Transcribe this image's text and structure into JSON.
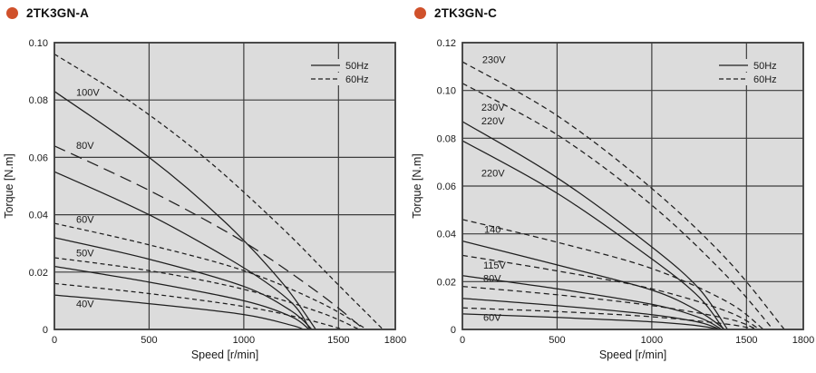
{
  "styles": {
    "accent": "#d0512b",
    "plot_bg": "#dcdcdc",
    "grid_color": "#3d3d3d",
    "curve_color": "#1f1f1f",
    "text_color": "#1a1a1a"
  },
  "chart_data": [
    {
      "type": "line",
      "title": "2TK3GN-A",
      "xlabel": "Speed [r/min]",
      "ylabel": "Torque [N.m]",
      "xlim": [
        0,
        1800
      ],
      "ylim": [
        0,
        0.1
      ],
      "grid": true,
      "xticks": {
        "values": [
          0,
          500,
          1000,
          1500,
          1800
        ],
        "labels": [
          "0",
          "500",
          "1000",
          "1500",
          "1800"
        ]
      },
      "yticks": {
        "values": [
          0,
          0.02,
          0.04,
          0.06,
          0.08,
          0.1
        ],
        "labels": [
          "0",
          "0.02",
          "0.04",
          "0.06",
          "0.08",
          "0.10"
        ]
      },
      "legend": {
        "position": "top-right",
        "items": [
          {
            "label": "50Hz",
            "style": "solid"
          },
          {
            "label": "60Hz",
            "style": "dashed"
          }
        ]
      },
      "series": [
        {
          "name": "100V 60Hz",
          "voltage": "100V",
          "frequency": "60Hz",
          "style": "dashed",
          "dash": "5,3.5",
          "points": [
            [
              0,
              0.096
            ],
            [
              400,
              0.0795
            ],
            [
              800,
              0.0595
            ],
            [
              1200,
              0.0355
            ],
            [
              1500,
              0.0155
            ],
            [
              1735,
              0
            ]
          ]
        },
        {
          "name": "100V 50Hz",
          "voltage": "100V",
          "frequency": "50Hz",
          "style": "solid",
          "dash": "",
          "points": [
            [
              0,
              0.083
            ],
            [
              500,
              0.06
            ],
            [
              900,
              0.0375
            ],
            [
              1200,
              0.0165
            ],
            [
              1380,
              0
            ]
          ]
        },
        {
          "name": "80V 60Hz",
          "voltage": "80V",
          "frequency": "60Hz",
          "style": "dashed",
          "dash": "13,7",
          "points": [
            [
              0,
              0.064
            ],
            [
              500,
              0.0485
            ],
            [
              1000,
              0.0305
            ],
            [
              1400,
              0.0125
            ],
            [
              1635,
              0
            ]
          ]
        },
        {
          "name": "80V 50Hz",
          "voltage": "80V",
          "frequency": "50Hz",
          "style": "solid",
          "dash": "",
          "points": [
            [
              0,
              0.055
            ],
            [
              500,
              0.04
            ],
            [
              1000,
              0.0215
            ],
            [
              1250,
              0.0095
            ],
            [
              1350,
              0
            ]
          ]
        },
        {
          "name": "60V 60Hz",
          "voltage": "60V",
          "frequency": "60Hz",
          "style": "dashed",
          "dash": "5,3.5",
          "points": [
            [
              0,
              0.037
            ],
            [
              500,
              0.0295
            ],
            [
              1000,
              0.0205
            ],
            [
              1400,
              0.0095
            ],
            [
              1650,
              0
            ]
          ]
        },
        {
          "name": "60V 50Hz",
          "voltage": "60V",
          "frequency": "50Hz",
          "style": "solid",
          "dash": "",
          "points": [
            [
              0,
              0.032
            ],
            [
              500,
              0.0245
            ],
            [
              1000,
              0.015
            ],
            [
              1250,
              0.0065
            ],
            [
              1360,
              0
            ]
          ]
        },
        {
          "name": "50V 60Hz",
          "voltage": "50V",
          "frequency": "60Hz",
          "style": "dashed",
          "dash": "5,3.5",
          "points": [
            [
              0,
              0.025
            ],
            [
              500,
              0.0205
            ],
            [
              1000,
              0.014
            ],
            [
              1400,
              0.006
            ],
            [
              1610,
              0
            ]
          ]
        },
        {
          "name": "50V 50Hz",
          "voltage": "50V",
          "frequency": "50Hz",
          "style": "solid",
          "dash": "",
          "points": [
            [
              0,
              0.022
            ],
            [
              500,
              0.0165
            ],
            [
              1000,
              0.01
            ],
            [
              1250,
              0.0045
            ],
            [
              1345,
              0
            ]
          ]
        },
        {
          "name": "40V 60Hz",
          "voltage": "40V",
          "frequency": "60Hz",
          "style": "dashed",
          "dash": "5,3.5",
          "points": [
            [
              0,
              0.016
            ],
            [
              500,
              0.0125
            ],
            [
              1000,
              0.008
            ],
            [
              1300,
              0.004
            ],
            [
              1525,
              0
            ]
          ]
        },
        {
          "name": "40V 50Hz",
          "voltage": "40V",
          "frequency": "50Hz",
          "style": "solid",
          "dash": "",
          "points": [
            [
              0,
              0.012
            ],
            [
              500,
              0.009
            ],
            [
              1000,
              0.0052
            ],
            [
              1250,
              0.0015
            ],
            [
              1315,
              0
            ]
          ]
        }
      ],
      "annotations": [
        {
          "text": "100V",
          "x": 115,
          "y": 0.0828
        },
        {
          "text": "80V",
          "x": 115,
          "y": 0.0643
        },
        {
          "text": "60V",
          "x": 115,
          "y": 0.0384
        },
        {
          "text": "50V",
          "x": 115,
          "y": 0.0267
        },
        {
          "text": "40V",
          "x": 115,
          "y": 0.009
        }
      ]
    },
    {
      "type": "line",
      "title": "2TK3GN-C",
      "xlabel": "Speed [r/min]",
      "ylabel": "Torque [N.m]",
      "xlim": [
        0,
        1800
      ],
      "ylim": [
        0,
        0.12
      ],
      "grid": true,
      "xticks": {
        "values": [
          0,
          500,
          1000,
          1500,
          1800
        ],
        "labels": [
          "0",
          "500",
          "1000",
          "1500",
          "1800"
        ]
      },
      "yticks": {
        "values": [
          0,
          0.02,
          0.04,
          0.06,
          0.08,
          0.1,
          0.12
        ],
        "labels": [
          "0",
          "0.02",
          "0.04",
          "0.06",
          "0.08",
          "0.10",
          "0.12"
        ]
      },
      "legend": {
        "position": "top-right",
        "items": [
          {
            "label": "50Hz",
            "style": "solid"
          },
          {
            "label": "60Hz",
            "style": "dashed"
          }
        ]
      },
      "series": [
        {
          "name": "230V 60Hz",
          "voltage": "230V",
          "frequency": "60Hz",
          "style": "dashed",
          "dash": "6,4",
          "points": [
            [
              0,
              0.112
            ],
            [
              500,
              0.0895
            ],
            [
              1000,
              0.059
            ],
            [
              1400,
              0.029
            ],
            [
              1700,
              0
            ]
          ]
        },
        {
          "name": "220V 60Hz",
          "voltage": "220V",
          "frequency": "60Hz",
          "style": "dashed",
          "dash": "6,4",
          "points": [
            [
              0,
              0.103
            ],
            [
              500,
              0.0815
            ],
            [
              1000,
              0.052
            ],
            [
              1400,
              0.022
            ],
            [
              1640,
              0
            ]
          ]
        },
        {
          "name": "230V 50Hz",
          "voltage": "230V",
          "frequency": "50Hz",
          "style": "solid",
          "dash": "",
          "points": [
            [
              0,
              0.087
            ],
            [
              500,
              0.0635
            ],
            [
              1000,
              0.0345
            ],
            [
              1250,
              0.017
            ],
            [
              1400,
              0
            ]
          ]
        },
        {
          "name": "220V 50Hz",
          "voltage": "220V",
          "frequency": "50Hz",
          "style": "solid",
          "dash": "",
          "points": [
            [
              0,
              0.079
            ],
            [
              500,
              0.057
            ],
            [
              1000,
              0.0295
            ],
            [
              1250,
              0.0135
            ],
            [
              1380,
              0
            ]
          ]
        },
        {
          "name": "140 60Hz",
          "voltage": "140",
          "frequency": "60Hz",
          "style": "dashed",
          "dash": "6,4",
          "points": [
            [
              0,
              0.046
            ],
            [
              500,
              0.0365
            ],
            [
              1000,
              0.0255
            ],
            [
              1400,
              0.0115
            ],
            [
              1590,
              0
            ]
          ]
        },
        {
          "name": "140 50Hz",
          "voltage": "140",
          "frequency": "50Hz",
          "style": "solid",
          "dash": "",
          "points": [
            [
              0,
              0.037
            ],
            [
              500,
              0.027
            ],
            [
              1000,
              0.0165
            ],
            [
              1250,
              0.0075
            ],
            [
              1385,
              0
            ]
          ]
        },
        {
          "name": "115V 60Hz",
          "voltage": "115V",
          "frequency": "60Hz",
          "style": "dashed",
          "dash": "6,4",
          "points": [
            [
              0,
              0.031
            ],
            [
              500,
              0.0245
            ],
            [
              1000,
              0.017
            ],
            [
              1400,
              0.0075
            ],
            [
              1570,
              0
            ]
          ]
        },
        {
          "name": "115V 50Hz",
          "voltage": "115V",
          "frequency": "50Hz",
          "style": "solid",
          "dash": "",
          "points": [
            [
              0,
              0.0225
            ],
            [
              500,
              0.017
            ],
            [
              1000,
              0.0105
            ],
            [
              1250,
              0.005
            ],
            [
              1370,
              0
            ]
          ]
        },
        {
          "name": "80V 60Hz",
          "voltage": "80V",
          "frequency": "60Hz",
          "style": "dashed",
          "dash": "6,4",
          "points": [
            [
              0,
              0.018
            ],
            [
              500,
              0.0145
            ],
            [
              1000,
              0.01
            ],
            [
              1400,
              0.0045
            ],
            [
              1555,
              0
            ]
          ]
        },
        {
          "name": "80V 50Hz",
          "voltage": "80V",
          "frequency": "50Hz",
          "style": "solid",
          "dash": "",
          "points": [
            [
              0,
              0.013
            ],
            [
              500,
              0.01
            ],
            [
              1000,
              0.0062
            ],
            [
              1250,
              0.003
            ],
            [
              1360,
              0
            ]
          ]
        },
        {
          "name": "60V 60Hz",
          "voltage": "60V",
          "frequency": "60Hz",
          "style": "dashed",
          "dash": "6,4",
          "points": [
            [
              0,
              0.009
            ],
            [
              500,
              0.0075
            ],
            [
              1000,
              0.0053
            ],
            [
              1400,
              0.0022
            ],
            [
              1545,
              0
            ]
          ]
        },
        {
          "name": "60V 50Hz",
          "voltage": "60V",
          "frequency": "50Hz",
          "style": "solid",
          "dash": "",
          "points": [
            [
              0,
              0.0065
            ],
            [
              500,
              0.005
            ],
            [
              1000,
              0.0032
            ],
            [
              1250,
              0.0015
            ],
            [
              1355,
              0
            ]
          ]
        }
      ],
      "annotations": [
        {
          "text": "230V",
          "x": 105,
          "y": 0.113
        },
        {
          "text": "230V",
          "x": 100,
          "y": 0.093
        },
        {
          "text": "220V",
          "x": 100,
          "y": 0.0873
        },
        {
          "text": "220V",
          "x": 100,
          "y": 0.0655
        },
        {
          "text": "140",
          "x": 115,
          "y": 0.042
        },
        {
          "text": "115V",
          "x": 110,
          "y": 0.027
        },
        {
          "text": "80V",
          "x": 110,
          "y": 0.0215
        },
        {
          "text": "60V",
          "x": 110,
          "y": 0.0052
        }
      ]
    }
  ]
}
